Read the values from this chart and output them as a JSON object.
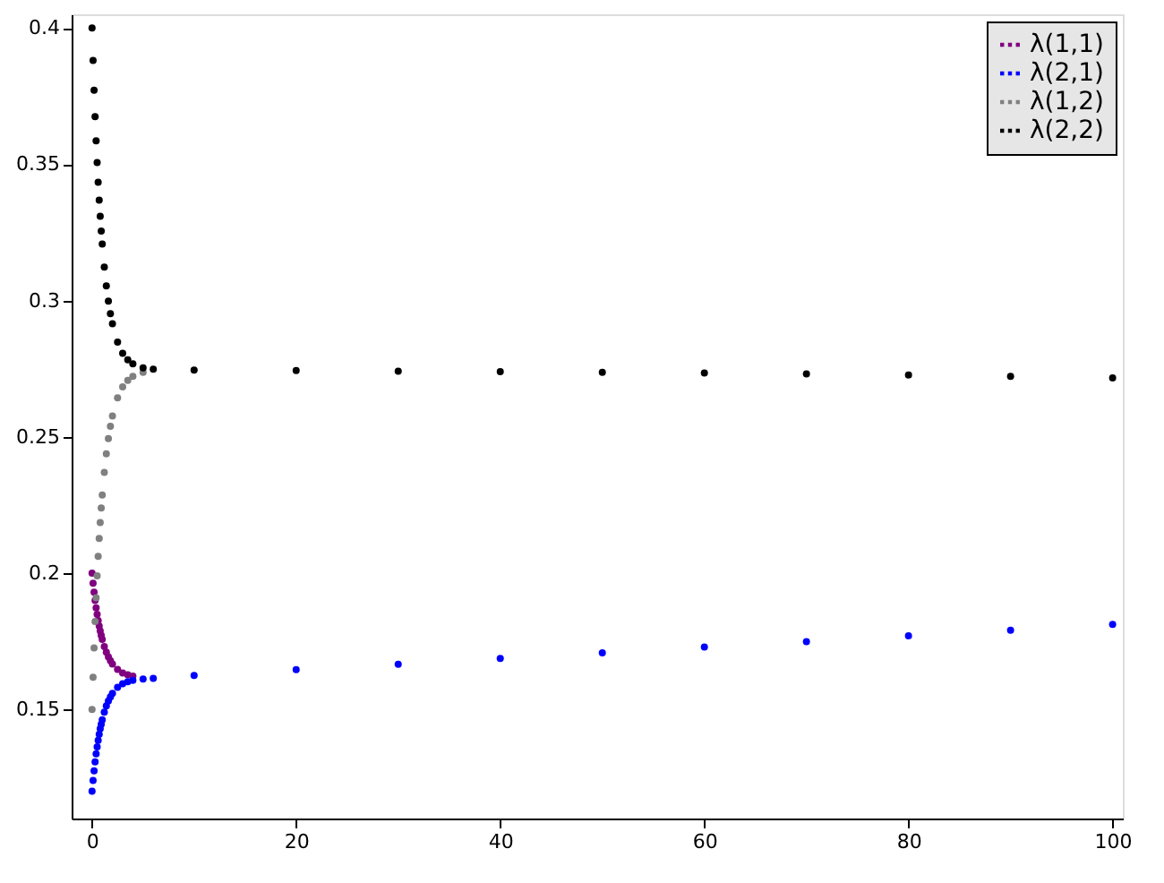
{
  "chart_data": {
    "type": "scatter",
    "marker": "circle",
    "grid": false,
    "legend": "top right",
    "xlim": [
      -2,
      101
    ],
    "xticks": [
      0,
      20,
      40,
      60,
      80,
      100
    ],
    "ylim": [
      0.11,
      0.405
    ],
    "yticks": [
      0.15,
      0.2,
      0.25,
      0.3,
      0.35,
      0.4
    ],
    "series": [
      {
        "name": "λ(1,1)",
        "color": "#800080",
        "x": [
          0,
          0.1,
          0.2,
          0.3,
          0.4,
          0.5,
          0.6,
          0.7,
          0.8,
          0.9,
          1,
          1.2,
          1.4,
          1.6,
          1.8,
          2,
          2.5,
          3,
          3.5,
          4
        ],
        "values": [
          0.2,
          0.1963,
          0.193,
          0.19,
          0.1873,
          0.1849,
          0.1826,
          0.1806,
          0.1788,
          0.1772,
          0.1757,
          0.1731,
          0.171,
          0.1693,
          0.1679,
          0.1667,
          0.1647,
          0.1634,
          0.1627,
          0.1622
        ]
      },
      {
        "name": "λ(2,1)",
        "color": "#0000ff",
        "x": [
          0,
          0.1,
          0.2,
          0.3,
          0.4,
          0.5,
          0.6,
          0.7,
          0.8,
          0.9,
          1,
          1.2,
          1.4,
          1.6,
          1.8,
          2,
          2.5,
          3,
          3.5,
          4,
          5,
          6,
          10,
          20,
          30,
          40,
          50,
          60,
          70,
          80,
          90,
          100
        ],
        "values": [
          0.12,
          0.124,
          0.1275,
          0.1308,
          0.1337,
          0.1363,
          0.1387,
          0.1409,
          0.1429,
          0.1446,
          0.1462,
          0.149,
          0.1513,
          0.1531,
          0.1546,
          0.1559,
          0.1581,
          0.1594,
          0.1602,
          0.1607,
          0.1612,
          0.1614,
          0.1625,
          0.1646,
          0.1666,
          0.1687,
          0.1708,
          0.1729,
          0.1749,
          0.177,
          0.1791,
          0.1812
        ]
      },
      {
        "name": "λ(1,2)",
        "color": "#808080",
        "x": [
          0,
          0.1,
          0.2,
          0.3,
          0.4,
          0.5,
          0.6,
          0.7,
          0.8,
          0.9,
          1,
          1.2,
          1.4,
          1.6,
          1.8,
          2,
          2.5,
          3,
          3.5,
          4,
          5
        ],
        "values": [
          0.15,
          0.1618,
          0.1726,
          0.1823,
          0.191,
          0.199,
          0.2062,
          0.2127,
          0.2186,
          0.2239,
          0.2287,
          0.237,
          0.2438,
          0.2494,
          0.2539,
          0.2577,
          0.2643,
          0.2683,
          0.2707,
          0.2722,
          0.2737
        ]
      },
      {
        "name": "λ(2,2)",
        "color": "#000000",
        "x": [
          0,
          0.1,
          0.2,
          0.3,
          0.4,
          0.5,
          0.6,
          0.7,
          0.8,
          0.9,
          1,
          1.2,
          1.4,
          1.6,
          1.8,
          2,
          2.5,
          3,
          3.5,
          4,
          5,
          6,
          10,
          20,
          30,
          40,
          50,
          60,
          70,
          80,
          90,
          100
        ],
        "values": [
          0.4,
          0.3881,
          0.3772,
          0.3675,
          0.3586,
          0.3506,
          0.3434,
          0.3368,
          0.3309,
          0.3255,
          0.3207,
          0.3123,
          0.3054,
          0.2998,
          0.2952,
          0.2915,
          0.2848,
          0.2807,
          0.2783,
          0.2768,
          0.2753,
          0.2748,
          0.2745,
          0.2743,
          0.2741,
          0.2739,
          0.2737,
          0.2734,
          0.2731,
          0.2727,
          0.2722,
          0.2716
        ]
      }
    ]
  }
}
